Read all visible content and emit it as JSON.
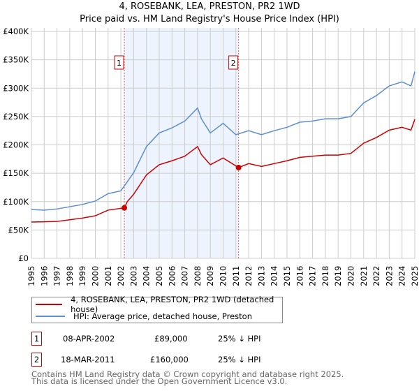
{
  "chart_data": {
    "type": "line",
    "title": "4, ROSEBANK, LEA, PRESTON, PR2 1WD",
    "subtitle": "Price paid vs. HM Land Registry's House Price Index (HPI)",
    "xlim": [
      1995,
      2025
    ],
    "ylim": [
      0,
      400000
    ],
    "y_ticks": [
      0,
      50000,
      100000,
      150000,
      200000,
      250000,
      300000,
      350000,
      400000
    ],
    "y_tick_labels": [
      "£0",
      "£50K",
      "£100K",
      "£150K",
      "£200K",
      "£250K",
      "£300K",
      "£350K",
      "£400K"
    ],
    "x_tick_labels": [
      "1995",
      "1996",
      "1997",
      "1998",
      "1999",
      "2000",
      "2001",
      "2002",
      "2003",
      "2004",
      "2005",
      "2006",
      "2007",
      "2008",
      "2009",
      "2010",
      "2011",
      "2012",
      "2013",
      "2014",
      "2015",
      "2016",
      "2017",
      "2018",
      "2019",
      "2020",
      "2021",
      "2022",
      "2023",
      "2024",
      "2025"
    ],
    "grid": true,
    "series": [
      {
        "name": "4, ROSEBANK, LEA, PRESTON, PR2 1WD (detached house)",
        "color": "#cc0000",
        "x": [
          1995,
          1996,
          1997,
          1998,
          1999,
          2000,
          2001,
          2002.27,
          2002.5,
          2003,
          2004,
          2005,
          2006,
          2007,
          2008,
          2008.3,
          2009,
          2010,
          2011.21,
          2012,
          2013,
          2014,
          2015,
          2016,
          2017,
          2018,
          2019,
          2020,
          2021,
          2022,
          2023,
          2024,
          2024.7,
          2025
        ],
        "values": [
          64000,
          64500,
          65000,
          68000,
          71000,
          75000,
          85000,
          89000,
          100000,
          113000,
          147000,
          165000,
          172000,
          180000,
          197000,
          183000,
          165000,
          177000,
          160000,
          167000,
          162000,
          167000,
          172000,
          178000,
          180000,
          182000,
          182000,
          185000,
          203000,
          213000,
          226000,
          231000,
          226000,
          245000
        ]
      },
      {
        "name": "HPI: Average price, detached house, Preston",
        "color": "#5b8fd0",
        "x": [
          1995,
          1996,
          1997,
          1998,
          1999,
          2000,
          2001,
          2002,
          2002.5,
          2003,
          2004,
          2005,
          2006,
          2007,
          2008,
          2008.3,
          2009,
          2010,
          2011,
          2012,
          2013,
          2014,
          2015,
          2016,
          2017,
          2018,
          2019,
          2020,
          2021,
          2022,
          2023,
          2024,
          2024.7,
          2025
        ],
        "values": [
          86000,
          85000,
          87000,
          91000,
          95000,
          101000,
          114000,
          119000,
          135000,
          151000,
          197000,
          221000,
          230000,
          242000,
          265000,
          246000,
          221000,
          238000,
          218000,
          225000,
          218000,
          225000,
          231000,
          240000,
          242000,
          246000,
          246000,
          250000,
          274000,
          287000,
          304000,
          311000,
          304000,
          329000
        ]
      }
    ],
    "shaded_range": [
      2002.27,
      2011.21
    ],
    "annotations": [
      {
        "label": "1",
        "x": 2002.27,
        "value": 89000
      },
      {
        "label": "2",
        "x": 2011.21,
        "value": 160000
      }
    ],
    "legend_placement": "below"
  },
  "legend": [
    "4, ROSEBANK, LEA, PRESTON, PR2 1WD (detached house)",
    "HPI: Average price, detached house, Preston"
  ],
  "sales": [
    {
      "num": "1",
      "date": "08-APR-2002",
      "price": "£89,000",
      "hpi": "25% ↓ HPI"
    },
    {
      "num": "2",
      "date": "18-MAR-2011",
      "price": "£160,000",
      "hpi": "25% ↓ HPI"
    }
  ],
  "footer": [
    "Contains HM Land Registry data © Crown copyright and database right 2025.",
    "This data is licensed under the Open Government Licence v3.0."
  ]
}
